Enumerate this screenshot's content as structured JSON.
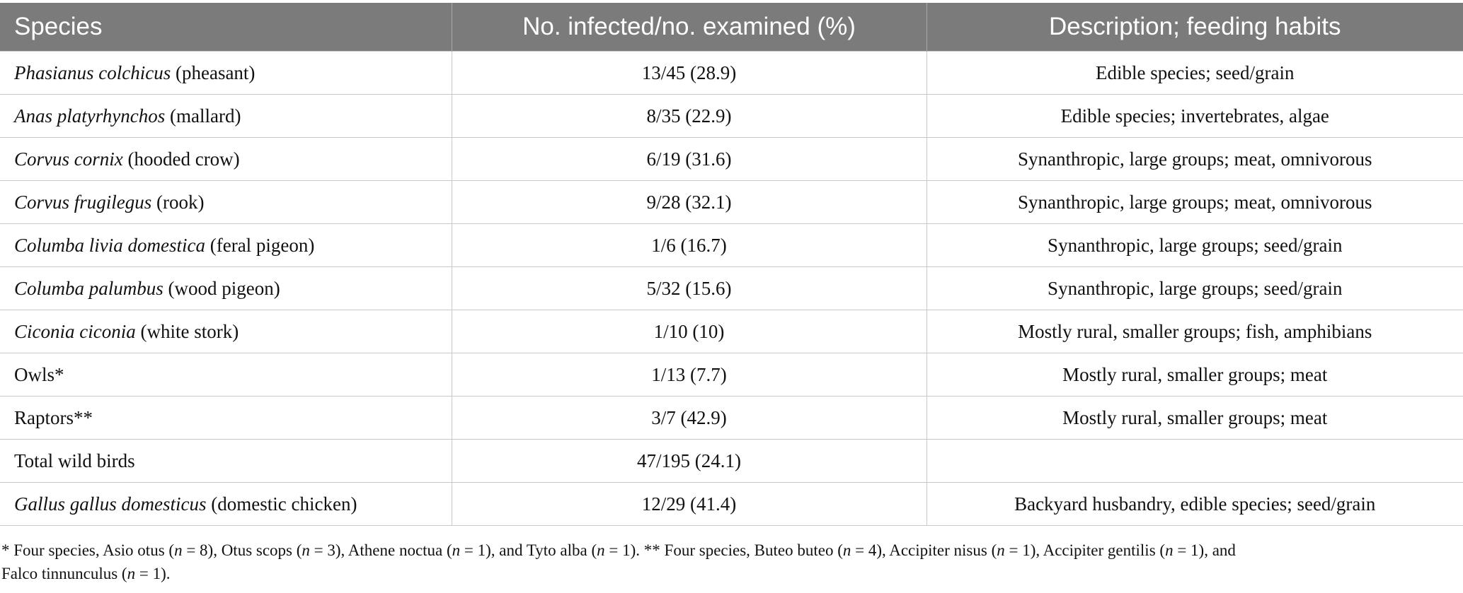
{
  "table": {
    "headers": [
      "Species",
      "No. infected/no. examined (%)",
      "Description; feeding habits"
    ],
    "rows": [
      {
        "sci": "Phasianus colchicus",
        "common": " (pheasant)",
        "ratio": "13/45 (28.9)",
        "desc": "Edible species; seed/grain"
      },
      {
        "sci": "Anas platyrhynchos",
        "common": " (mallard)",
        "ratio": "8/35 (22.9)",
        "desc": "Edible species; invertebrates, algae"
      },
      {
        "sci": "Corvus cornix",
        "common": " (hooded crow)",
        "ratio": "6/19 (31.6)",
        "desc": "Synanthropic, large groups; meat, omnivorous"
      },
      {
        "sci": "Corvus frugilegus",
        "common": " (rook)",
        "ratio": "9/28 (32.1)",
        "desc": "Synanthropic, large groups; meat, omnivorous"
      },
      {
        "sci": "Columba livia domestica",
        "common": " (feral pigeon)",
        "ratio": "1/6 (16.7)",
        "desc": "Synanthropic, large groups; seed/grain"
      },
      {
        "sci": "Columba palumbus",
        "common": " (wood pigeon)",
        "ratio": "5/32 (15.6)",
        "desc": "Synanthropic, large groups; seed/grain"
      },
      {
        "sci": "Ciconia ciconia",
        "common": " (white stork)",
        "ratio": "1/10 (10)",
        "desc": "Mostly rural, smaller groups; fish, amphibians"
      },
      {
        "sci": "",
        "common": "Owls*",
        "ratio": "1/13 (7.7)",
        "desc": "Mostly rural, smaller groups; meat"
      },
      {
        "sci": "",
        "common": "Raptors**",
        "ratio": "3/7 (42.9)",
        "desc": "Mostly rural, smaller groups; meat"
      },
      {
        "sci": "",
        "common": "Total wild birds",
        "ratio": "47/195 (24.1)",
        "desc": ""
      },
      {
        "sci": "Gallus gallus domesticus",
        "common": " (domestic chicken)",
        "ratio": "12/29 (41.4)",
        "desc": "Backyard husbandry, edible species; seed/grain"
      }
    ]
  },
  "footnote": {
    "p1": "* Four species, Asio otus (",
    "n1": "n",
    "p2": " = 8), Otus scops (",
    "n2": "n",
    "p3": " = 3), Athene noctua (",
    "n3": "n",
    "p4": " = 1), and Tyto alba (",
    "n4": "n",
    "p5": " = 1). ** Four species, Buteo buteo (",
    "n5": "n",
    "p6": " = 4), Accipiter nisus (",
    "n6": "n",
    "p7": " = 1), Accipiter gentilis (",
    "n7": "n",
    "p8": " = 1), and",
    "p9": "Falco tinnunculus (",
    "n8": "n",
    "p10": " = 1)."
  }
}
